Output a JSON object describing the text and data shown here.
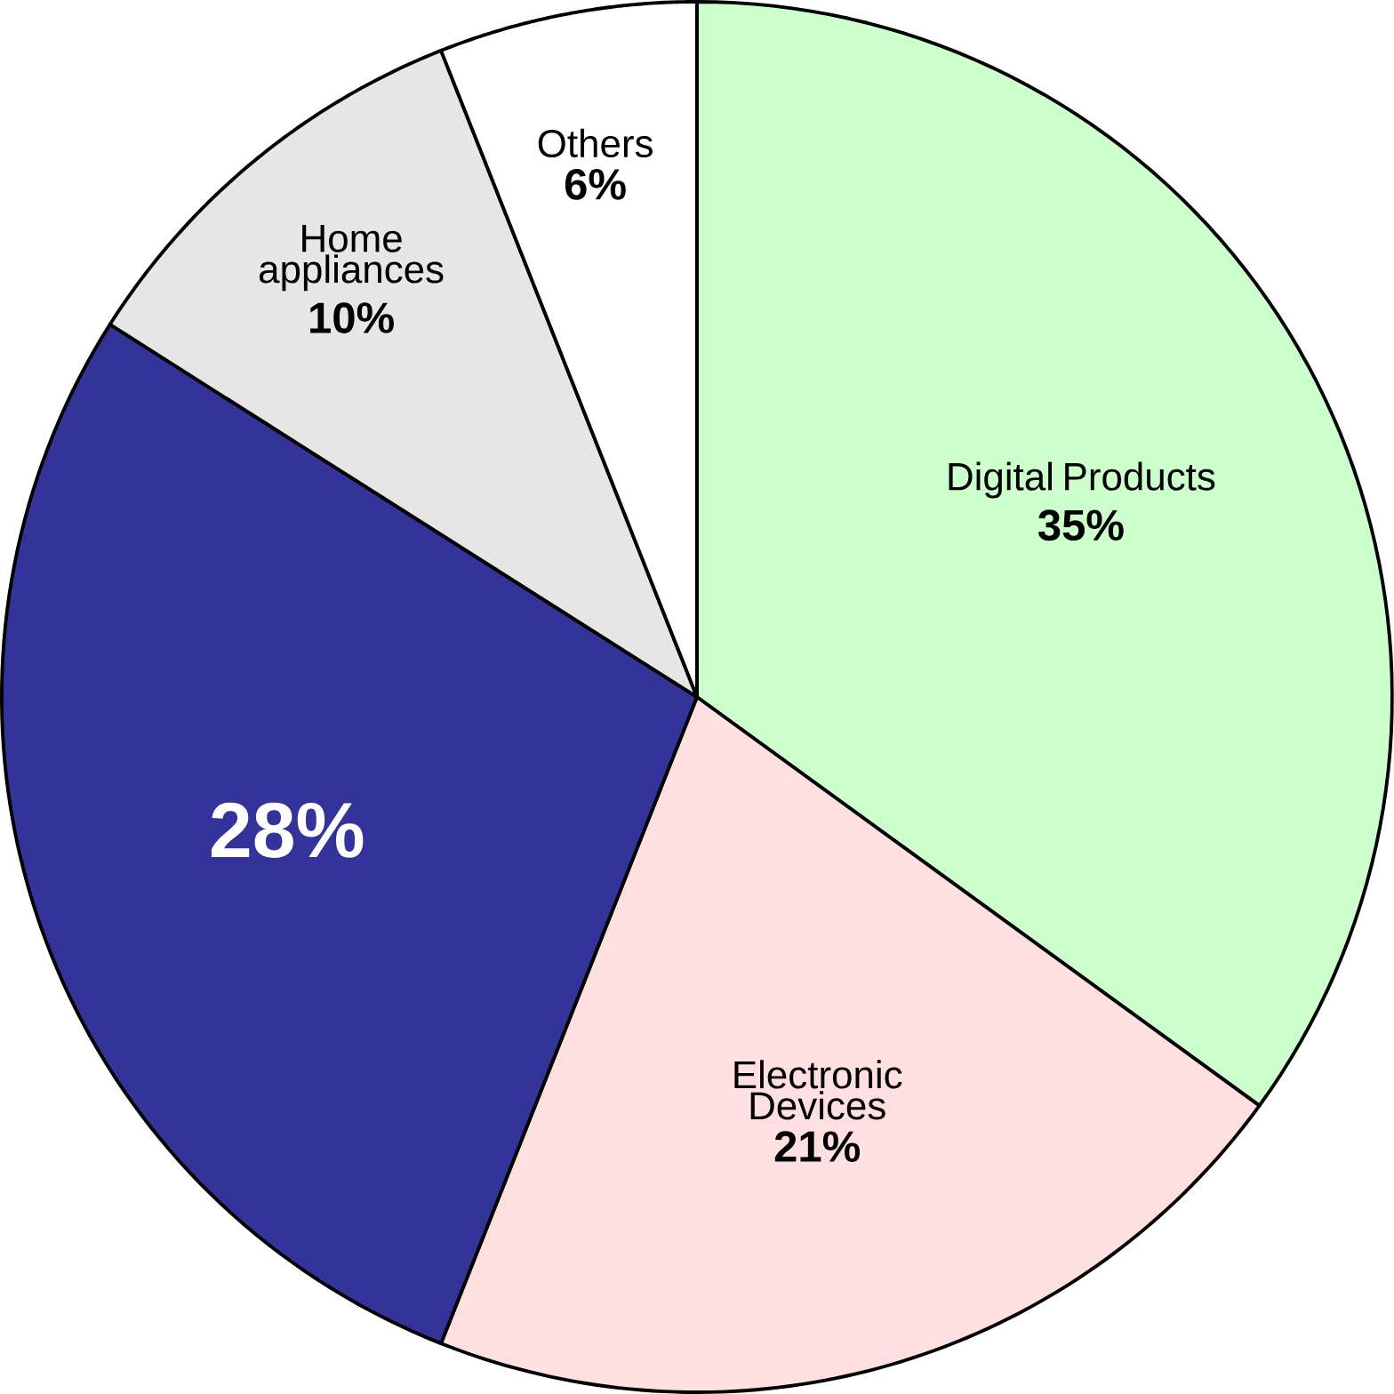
{
  "chart_data": {
    "type": "pie",
    "categories": [
      "Digital Products",
      "Electronic Devices",
      null,
      "Home appliances",
      "Others"
    ],
    "values": [
      35,
      21,
      28,
      10,
      6
    ],
    "value_labels": [
      "35%",
      "21%",
      "28%",
      "10%",
      "6%"
    ],
    "colors": [
      "#ccffcc",
      "#ffdfdf",
      "#333399",
      "#e6e6e6",
      "#ffffff"
    ]
  }
}
